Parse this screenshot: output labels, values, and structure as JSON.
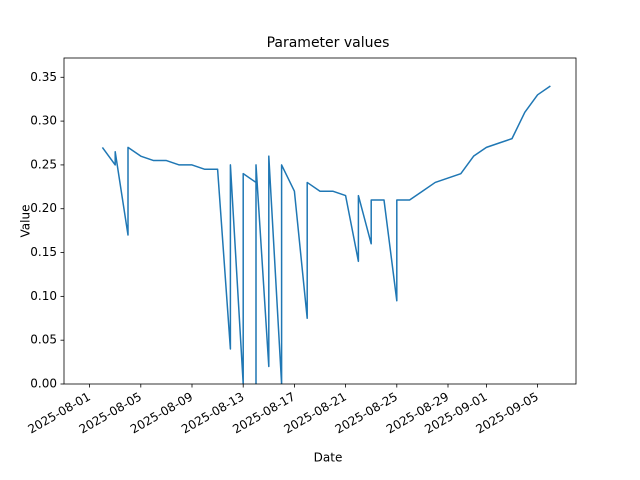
{
  "chart_data": {
    "type": "line",
    "title": "Parameter values",
    "xlabel": "Date",
    "ylabel": "Value",
    "x": [
      "2025-08-02",
      "2025-08-03",
      "2025-08-03",
      "2025-08-04",
      "2025-08-04",
      "2025-08-05",
      "2025-08-06",
      "2025-08-07",
      "2025-08-08",
      "2025-08-09",
      "2025-08-10",
      "2025-08-11",
      "2025-08-12",
      "2025-08-12",
      "2025-08-13",
      "2025-08-13",
      "2025-08-14",
      "2025-08-14",
      "2025-08-14",
      "2025-08-15",
      "2025-08-15",
      "2025-08-16",
      "2025-08-16",
      "2025-08-17",
      "2025-08-18",
      "2025-08-18",
      "2025-08-19",
      "2025-08-20",
      "2025-08-21",
      "2025-08-22",
      "2025-08-22",
      "2025-08-23",
      "2025-08-23",
      "2025-08-24",
      "2025-08-25",
      "2025-08-25",
      "2025-08-26",
      "2025-08-27",
      "2025-08-28",
      "2025-08-29",
      "2025-08-30",
      "2025-08-31",
      "2025-09-01",
      "2025-09-02",
      "2025-09-03",
      "2025-09-04",
      "2025-09-05",
      "2025-09-06"
    ],
    "series": [
      {
        "name": "Value",
        "color": "#1f77b4",
        "values": [
          0.27,
          0.25,
          0.265,
          0.17,
          0.27,
          0.26,
          0.255,
          0.255,
          0.25,
          0.25,
          0.245,
          0.245,
          0.04,
          0.25,
          0.0,
          0.24,
          0.23,
          0.0,
          0.25,
          0.02,
          0.26,
          0.0,
          0.25,
          0.22,
          0.075,
          0.23,
          0.22,
          0.22,
          0.215,
          0.14,
          0.215,
          0.16,
          0.21,
          0.21,
          0.095,
          0.21,
          0.21,
          0.22,
          0.23,
          0.235,
          0.24,
          0.26,
          0.27,
          0.275,
          0.28,
          0.31,
          0.33,
          0.34
        ]
      }
    ],
    "xlim": [
      "2025-07-30",
      "2025-09-08"
    ],
    "xticks": [
      "2025-08-01",
      "2025-08-05",
      "2025-08-09",
      "2025-08-13",
      "2025-08-17",
      "2025-08-21",
      "2025-08-25",
      "2025-08-29",
      "2025-09-01",
      "2025-09-05"
    ],
    "ylim": [
      0,
      0.372
    ],
    "yticks": [
      {
        "value": 0,
        "label": "0.00"
      },
      {
        "value": 0.05,
        "label": "0.05"
      },
      {
        "value": 0.1,
        "label": "0.10"
      },
      {
        "value": 0.15,
        "label": "0.15"
      },
      {
        "value": 0.2,
        "label": "0.20"
      },
      {
        "value": 0.25,
        "label": "0.25"
      },
      {
        "value": 0.3,
        "label": "0.30"
      },
      {
        "value": 0.35,
        "label": "0.35"
      }
    ]
  }
}
